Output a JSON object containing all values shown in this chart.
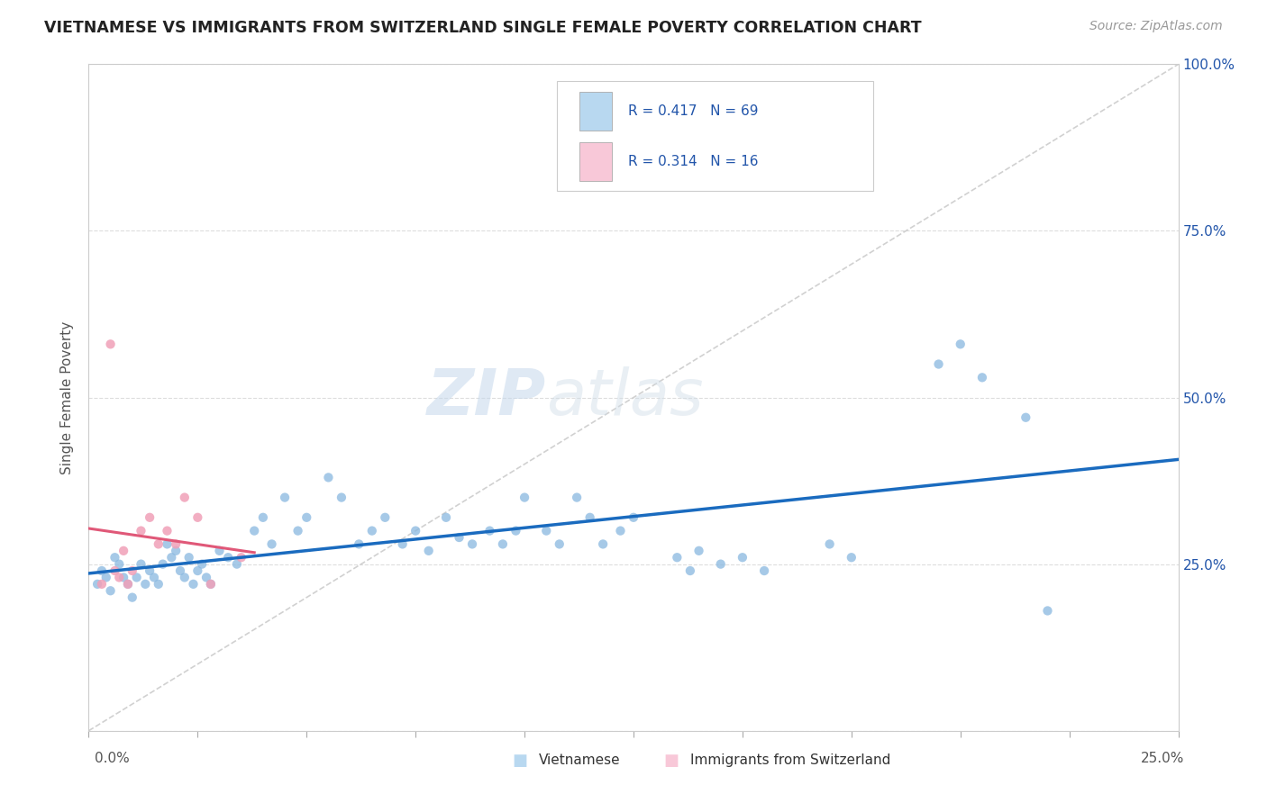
{
  "title": "VIETNAMESE VS IMMIGRANTS FROM SWITZERLAND SINGLE FEMALE POVERTY CORRELATION CHART",
  "source": "Source: ZipAtlas.com",
  "ylabel": "Single Female Poverty",
  "r_vietnamese": 0.417,
  "n_vietnamese": 69,
  "r_swiss": 0.314,
  "n_swiss": 16,
  "watermark_zip": "ZIP",
  "watermark_atlas": "atlas",
  "background_color": "#ffffff",
  "blue_dot_color": "#89b8e0",
  "blue_line_color": "#1a6bbf",
  "pink_dot_color": "#f0a0b8",
  "pink_line_color": "#e05878",
  "legend_blue_fill": "#b8d8f0",
  "legend_pink_fill": "#f8c8d8",
  "diag_line_color": "#cccccc",
  "grid_color": "#dddddd",
  "text_color_blue": "#2255aa",
  "xmin": 0.0,
  "xmax": 0.25,
  "ymin": 0.0,
  "ymax": 1.0,
  "ytick_vals": [
    0.0,
    0.25,
    0.5,
    0.75,
    1.0
  ],
  "ytick_labels": [
    "",
    "25.0%",
    "50.0%",
    "75.0%",
    "100.0%"
  ]
}
